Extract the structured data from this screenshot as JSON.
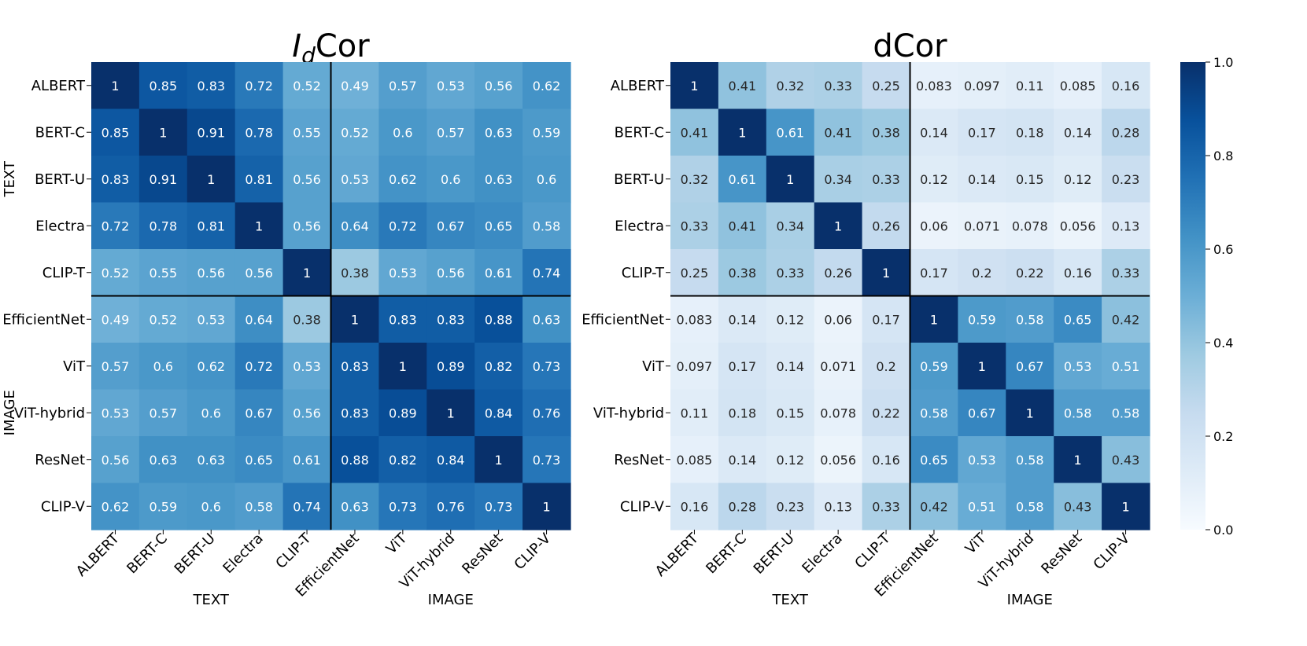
{
  "chart_data": [
    {
      "type": "heatmap",
      "title_main": "I",
      "title_sub": "d",
      "title_rest": "Cor",
      "labels": [
        "ALBERT",
        "BERT-C",
        "BERT-U",
        "Electra",
        "CLIP-T",
        "EfficientNet",
        "ViT",
        "ViT-hybrid",
        "ResNet",
        "CLIP-V"
      ],
      "group_labels": [
        "TEXT",
        "IMAGE"
      ],
      "group_split": 5,
      "values": [
        [
          1,
          0.85,
          0.83,
          0.72,
          0.52,
          0.49,
          0.57,
          0.53,
          0.56,
          0.62
        ],
        [
          0.85,
          1,
          0.91,
          0.78,
          0.55,
          0.52,
          0.6,
          0.57,
          0.63,
          0.59
        ],
        [
          0.83,
          0.91,
          1,
          0.81,
          0.56,
          0.53,
          0.62,
          0.6,
          0.63,
          0.6
        ],
        [
          0.72,
          0.78,
          0.81,
          1,
          0.56,
          0.64,
          0.72,
          0.67,
          0.65,
          0.58
        ],
        [
          0.52,
          0.55,
          0.56,
          0.56,
          1,
          0.38,
          0.53,
          0.56,
          0.61,
          0.74
        ],
        [
          0.49,
          0.52,
          0.53,
          0.64,
          0.38,
          1,
          0.83,
          0.83,
          0.88,
          0.63
        ],
        [
          0.57,
          0.6,
          0.62,
          0.72,
          0.53,
          0.83,
          1,
          0.89,
          0.82,
          0.73
        ],
        [
          0.53,
          0.57,
          0.6,
          0.67,
          0.56,
          0.83,
          0.89,
          1,
          0.84,
          0.76
        ],
        [
          0.56,
          0.63,
          0.63,
          0.65,
          0.61,
          0.88,
          0.82,
          0.84,
          1,
          0.73
        ],
        [
          0.62,
          0.59,
          0.6,
          0.58,
          0.74,
          0.63,
          0.73,
          0.76,
          0.73,
          1
        ]
      ]
    },
    {
      "type": "heatmap",
      "title_main": "dCor",
      "title_sub": "",
      "title_rest": "",
      "labels": [
        "ALBERT",
        "BERT-C",
        "BERT-U",
        "Electra",
        "CLIP-T",
        "EfficientNet",
        "ViT",
        "ViT-hybrid",
        "ResNet",
        "CLIP-V"
      ],
      "group_labels": [
        "TEXT",
        "IMAGE"
      ],
      "group_split": 5,
      "values": [
        [
          1,
          0.41,
          0.32,
          0.33,
          0.25,
          0.083,
          0.097,
          0.11,
          0.085,
          0.16
        ],
        [
          0.41,
          1,
          0.61,
          0.41,
          0.38,
          0.14,
          0.17,
          0.18,
          0.14,
          0.28
        ],
        [
          0.32,
          0.61,
          1,
          0.34,
          0.33,
          0.12,
          0.14,
          0.15,
          0.12,
          0.23
        ],
        [
          0.33,
          0.41,
          0.34,
          1,
          0.26,
          0.06,
          0.071,
          0.078,
          0.056,
          0.13
        ],
        [
          0.25,
          0.38,
          0.33,
          0.26,
          1,
          0.17,
          0.2,
          0.22,
          0.16,
          0.33
        ],
        [
          0.083,
          0.14,
          0.12,
          0.06,
          0.17,
          1,
          0.59,
          0.58,
          0.65,
          0.42
        ],
        [
          0.097,
          0.17,
          0.14,
          0.071,
          0.2,
          0.59,
          1,
          0.67,
          0.53,
          0.51
        ],
        [
          0.11,
          0.18,
          0.15,
          0.078,
          0.22,
          0.58,
          0.67,
          1,
          0.58,
          0.58
        ],
        [
          0.085,
          0.14,
          0.12,
          0.056,
          0.16,
          0.65,
          0.53,
          0.58,
          1,
          0.43
        ],
        [
          0.16,
          0.28,
          0.23,
          0.13,
          0.33,
          0.42,
          0.51,
          0.58,
          0.43,
          1
        ]
      ]
    }
  ],
  "colorbar": {
    "colormap": "Blues",
    "vmin": 0.0,
    "vmax": 1.0,
    "tick_values": [
      0.0,
      0.2,
      0.4,
      0.6,
      0.8,
      1.0
    ],
    "tick_labels": [
      "0.0",
      "0.2",
      "0.4",
      "0.6",
      "0.8",
      "1.0"
    ],
    "colors": [
      "#f7fbff",
      "#deebf7",
      "#c6dbef",
      "#9ecae1",
      "#6baed6",
      "#4292c6",
      "#2171b5",
      "#08519c",
      "#08306b"
    ]
  }
}
